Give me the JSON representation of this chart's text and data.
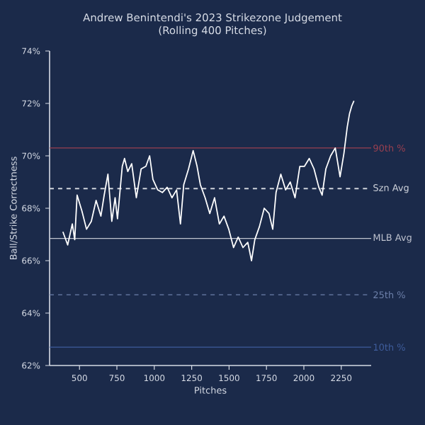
{
  "chart_data": {
    "type": "line",
    "title": "Andrew Benintendi's 2023 Strikezone Judgement",
    "subtitle": "(Rolling 400 Pitches)",
    "xlabel": "Pitches",
    "ylabel": "Ball/Strike Correctness",
    "xlim": [
      300,
      2450
    ],
    "xticks": [
      500,
      750,
      1000,
      1250,
      1500,
      1750,
      2000,
      2250
    ],
    "ylim": [
      62,
      74
    ],
    "yticks": [
      {
        "value": 62,
        "label": "62%"
      },
      {
        "value": 64,
        "label": "64%"
      },
      {
        "value": 66,
        "label": "66%"
      },
      {
        "value": 68,
        "label": "68%"
      },
      {
        "value": 70,
        "label": "70%"
      },
      {
        "value": 72,
        "label": "72%"
      },
      {
        "value": 74,
        "label": "74%"
      }
    ],
    "grid": false,
    "x": [
      389,
      421,
      452,
      468,
      484,
      516,
      547,
      579,
      611,
      643,
      665,
      690,
      716,
      738,
      754,
      786,
      801,
      823,
      849,
      880,
      912,
      944,
      969,
      991,
      1023,
      1054,
      1086,
      1118,
      1149,
      1175,
      1197,
      1229,
      1260,
      1286,
      1308,
      1340,
      1371,
      1403,
      1435,
      1466,
      1498,
      1530,
      1561,
      1593,
      1625,
      1650,
      1672,
      1703,
      1735,
      1767,
      1792,
      1814,
      1846,
      1878,
      1909,
      1941,
      1973,
      2004,
      2036,
      2068,
      2100,
      2122,
      2147,
      2179,
      2210,
      2242,
      2268,
      2290,
      2305,
      2320,
      2335
    ],
    "series": [
      {
        "color": "#ffffff",
        "values": [
          67.1,
          66.6,
          67.4,
          66.8,
          68.5,
          67.9,
          67.2,
          67.5,
          68.3,
          67.7,
          68.5,
          69.3,
          67.5,
          68.4,
          67.6,
          69.6,
          69.9,
          69.4,
          69.7,
          68.4,
          69.5,
          69.6,
          70.0,
          69.1,
          68.7,
          68.6,
          68.8,
          68.4,
          68.7,
          67.4,
          68.9,
          69.5,
          70.2,
          69.6,
          68.9,
          68.4,
          67.8,
          68.4,
          67.4,
          67.7,
          67.2,
          66.5,
          66.9,
          66.5,
          66.7,
          66.0,
          66.8,
          67.3,
          68.0,
          67.8,
          67.2,
          68.6,
          69.3,
          68.7,
          69.0,
          68.4,
          69.6,
          69.6,
          69.9,
          69.5,
          68.8,
          68.5,
          69.5,
          70.0,
          70.3,
          69.2,
          70.1,
          71.1,
          71.6,
          71.9,
          72.1
        ]
      }
    ],
    "ref_lines": [
      {
        "axis": "y",
        "value": 70.3,
        "label": "90th %",
        "color": "#9b4050",
        "line_style": "solid"
      },
      {
        "axis": "y",
        "value": 68.75,
        "label": "Szn Avg",
        "color": "#d0d4dc",
        "line_style": "dashed"
      },
      {
        "axis": "y",
        "value": 66.85,
        "label": "MLB Avg",
        "color": "#c0c4d0",
        "line_style": "solid"
      },
      {
        "axis": "y",
        "value": 64.7,
        "label": "25th %",
        "color": "#6d80aa",
        "line_style": "dashed"
      },
      {
        "axis": "y",
        "value": 62.7,
        "label": "10th %",
        "color": "#3f5d9c",
        "line_style": "solid"
      }
    ]
  }
}
